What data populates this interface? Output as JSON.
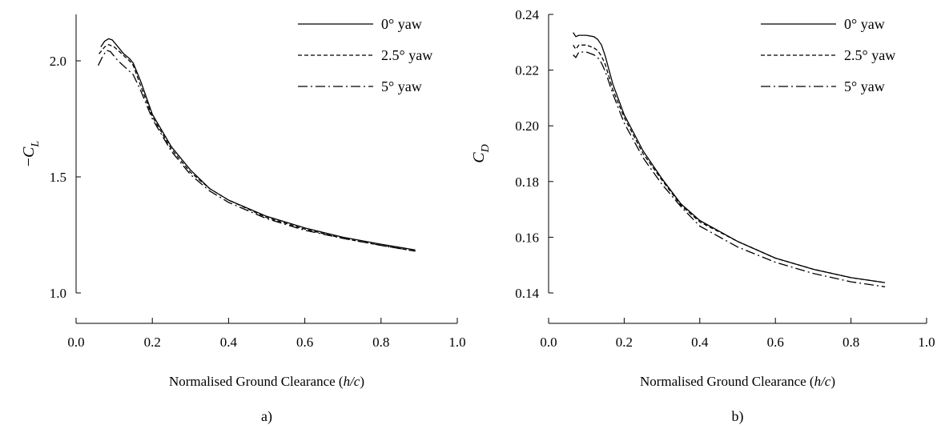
{
  "chart_data": [
    {
      "type": "line",
      "ylabel_prefix": "−",
      "ylabel_symbol": "C",
      "ylabel_subscript": "L",
      "xlabel_pre": "Normalised Ground Clearance (",
      "xlabel_italic": "h/c",
      "xlabel_post": ")",
      "panel_label": "a)",
      "xlim": [
        0.0,
        1.0
      ],
      "ylim": [
        1.0,
        2.2
      ],
      "xticks": [
        "0.0",
        "0.2",
        "0.4",
        "0.6",
        "0.8",
        "1.0"
      ],
      "yticks": [
        "1.0",
        "1.5",
        "2.0"
      ],
      "legend_position": "top-right",
      "series": [
        {
          "name": "0° yaw",
          "style": "solid",
          "x": [
            0.065,
            0.075,
            0.085,
            0.095,
            0.11,
            0.125,
            0.14,
            0.15,
            0.17,
            0.2,
            0.25,
            0.3,
            0.35,
            0.4,
            0.5,
            0.6,
            0.7,
            0.8,
            0.89
          ],
          "y": [
            2.06,
            2.085,
            2.095,
            2.09,
            2.06,
            2.03,
            2.01,
            1.99,
            1.91,
            1.77,
            1.63,
            1.53,
            1.45,
            1.4,
            1.33,
            1.28,
            1.24,
            1.21,
            1.185
          ]
        },
        {
          "name": "2.5° yaw",
          "style": "dashed",
          "x": [
            0.06,
            0.075,
            0.085,
            0.1,
            0.12,
            0.14,
            0.15,
            0.17,
            0.2,
            0.25,
            0.3,
            0.35,
            0.4,
            0.5,
            0.6,
            0.7,
            0.8,
            0.89
          ],
          "y": [
            2.03,
            2.06,
            2.07,
            2.06,
            2.03,
            2.0,
            1.98,
            1.89,
            1.76,
            1.62,
            1.52,
            1.45,
            1.4,
            1.325,
            1.275,
            1.235,
            1.205,
            1.18
          ]
        },
        {
          "name": "5° yaw",
          "style": "dashdot",
          "x": [
            0.058,
            0.07,
            0.08,
            0.09,
            0.11,
            0.13,
            0.15,
            0.17,
            0.2,
            0.25,
            0.3,
            0.35,
            0.4,
            0.5,
            0.6,
            0.7,
            0.8,
            0.89
          ],
          "y": [
            1.98,
            2.02,
            2.045,
            2.04,
            2.0,
            1.97,
            1.94,
            1.87,
            1.75,
            1.61,
            1.51,
            1.44,
            1.39,
            1.32,
            1.27,
            1.235,
            1.205,
            1.18
          ]
        }
      ]
    },
    {
      "type": "line",
      "ylabel_prefix": "",
      "ylabel_symbol": "C",
      "ylabel_subscript": "D",
      "xlabel_pre": "Normalised Ground Clearance (",
      "xlabel_italic": "h/c",
      "xlabel_post": ")",
      "panel_label": "b)",
      "xlim": [
        0.0,
        1.0
      ],
      "ylim": [
        0.14,
        0.24
      ],
      "xticks": [
        "0.0",
        "0.2",
        "0.4",
        "0.6",
        "0.8",
        "1.0"
      ],
      "yticks": [
        "0.14",
        "0.16",
        "0.18",
        "0.20",
        "0.22",
        "0.24"
      ],
      "legend_position": "top-right",
      "series": [
        {
          "name": "0° yaw",
          "style": "solid",
          "x": [
            0.065,
            0.072,
            0.08,
            0.1,
            0.12,
            0.13,
            0.14,
            0.15,
            0.17,
            0.2,
            0.25,
            0.3,
            0.35,
            0.4,
            0.5,
            0.6,
            0.7,
            0.8,
            0.89
          ],
          "y": [
            0.2335,
            0.232,
            0.2325,
            0.2325,
            0.232,
            0.231,
            0.229,
            0.225,
            0.215,
            0.204,
            0.191,
            0.181,
            0.172,
            0.166,
            0.1585,
            0.1525,
            0.1485,
            0.1455,
            0.1437
          ]
        },
        {
          "name": "2.5° yaw",
          "style": "dashed",
          "x": [
            0.065,
            0.072,
            0.08,
            0.1,
            0.12,
            0.13,
            0.14,
            0.15,
            0.17,
            0.2,
            0.25,
            0.3,
            0.35,
            0.4,
            0.5,
            0.6,
            0.7,
            0.8,
            0.89
          ],
          "y": [
            0.229,
            0.2275,
            0.229,
            0.229,
            0.228,
            0.227,
            0.225,
            0.222,
            0.213,
            0.203,
            0.19,
            0.1805,
            0.1715,
            0.1655,
            0.1585,
            0.1525,
            0.1485,
            0.1455,
            0.1437
          ]
        },
        {
          "name": "5° yaw",
          "style": "dashdot",
          "x": [
            0.065,
            0.072,
            0.08,
            0.1,
            0.12,
            0.13,
            0.14,
            0.15,
            0.17,
            0.2,
            0.25,
            0.3,
            0.35,
            0.4,
            0.5,
            0.6,
            0.7,
            0.8,
            0.89
          ],
          "y": [
            0.2255,
            0.2245,
            0.2265,
            0.2265,
            0.2255,
            0.2245,
            0.2225,
            0.2195,
            0.2115,
            0.201,
            0.1885,
            0.179,
            0.171,
            0.164,
            0.1565,
            0.151,
            0.147,
            0.144,
            0.1422
          ]
        }
      ]
    }
  ]
}
